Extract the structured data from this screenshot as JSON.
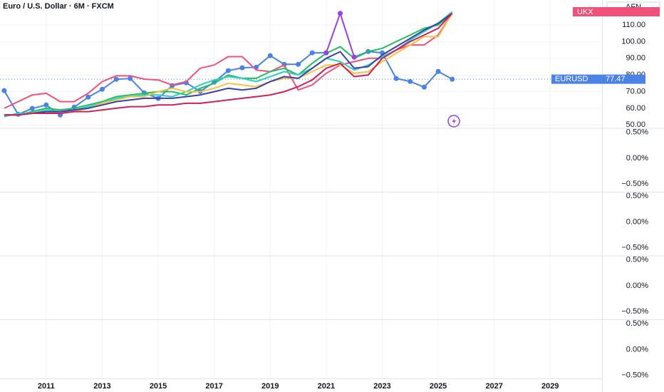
{
  "chart_data": {
    "type": "line",
    "title": "Euro / U.S. Dollar · 6M · FXCM",
    "currency": "AFN",
    "xlim": [
      2009.35,
      2030.85
    ],
    "xticks": [
      2011,
      2013,
      2015,
      2017,
      2019,
      2021,
      2023,
      2025,
      2027,
      2029
    ],
    "ylim": [
      48,
      125
    ],
    "yticks": [
      {
        "value": 110,
        "label": "110.00"
      },
      {
        "value": 100,
        "label": "100.00"
      },
      {
        "value": 90,
        "label": "90.00"
      },
      {
        "value": 80,
        "label": "80.00"
      },
      {
        "value": 70,
        "label": "70.00"
      },
      {
        "value": 60,
        "label": "60.00"
      },
      {
        "value": 50,
        "label": "50.00"
      }
    ],
    "grid": true,
    "x": [
      2009.5,
      2010,
      2010.5,
      2011,
      2011.5,
      2012,
      2012.5,
      2013,
      2013.5,
      2014,
      2014.5,
      2015,
      2015.5,
      2016,
      2016.5,
      2017,
      2017.5,
      2018,
      2018.5,
      2019,
      2019.5,
      2020,
      2020.5,
      2021,
      2021.5,
      2022,
      2022.5,
      2023,
      2023.5,
      2024,
      2024.5,
      2025,
      2025.5
    ],
    "series": [
      {
        "name": "EURUSD",
        "color": "#4a82e6",
        "markers": true,
        "last_tag": true,
        "values": [
          70.6,
          56.4,
          59.9,
          62,
          56,
          60.7,
          66.7,
          71.4,
          77.4,
          77.9,
          69.3,
          65.9,
          73.6,
          75.3,
          70.1,
          75.7,
          82.6,
          84.3,
          84.7,
          91.6,
          86.4,
          86.4,
          93.3,
          93.3,
          null,
          90.7,
          94.1,
          93.3,
          77.9,
          76.1,
          72.7,
          82.1,
          77.47
        ]
      },
      {
        "name": "UKX",
        "color": "#f0507a",
        "top_tag": true,
        "values": [
          60,
          64,
          68,
          69,
          64,
          64,
          69,
          76,
          79.5,
          79.5,
          77.5,
          77,
          74,
          76,
          84,
          86,
          91,
          91,
          83,
          82,
          86,
          71,
          74,
          81,
          86,
          88,
          90,
          90,
          95,
          98,
          98,
          104,
          117
        ]
      },
      {
        "color": "#1fbf5a",
        "values": [
          56,
          56,
          58,
          60,
          59,
          60,
          62,
          64,
          67,
          68,
          69,
          70,
          70,
          68,
          72,
          75,
          80,
          78,
          78,
          82,
          84,
          80,
          87,
          93,
          97,
          90,
          94,
          96,
          100,
          104,
          108,
          110,
          117
        ]
      },
      {
        "color": "#2ad0c0",
        "values": [
          55,
          57,
          57,
          59,
          58,
          59,
          61,
          63,
          66,
          67,
          68,
          68,
          67,
          70,
          74,
          77,
          79,
          78,
          76,
          79,
          82,
          80,
          84,
          90,
          88,
          83,
          86,
          91,
          95,
          101,
          106,
          111,
          118
        ]
      },
      {
        "color": "#f5c242",
        "values": [
          56,
          56,
          57,
          58,
          57,
          58,
          60,
          63,
          65,
          67,
          67,
          70,
          72,
          70,
          70,
          72,
          75,
          74,
          73,
          76,
          78,
          78,
          82,
          86,
          86,
          81,
          82,
          88,
          93,
          98,
          103,
          103,
          117
        ]
      },
      {
        "color": "#3b3fb0",
        "values": [
          56,
          56,
          57,
          58,
          58,
          59,
          60,
          62,
          64,
          65,
          66,
          66,
          66,
          67,
          68,
          70,
          72,
          71,
          72,
          76,
          79,
          78,
          84,
          90,
          94,
          84,
          85,
          92,
          97,
          102,
          107,
          111,
          117
        ]
      },
      {
        "color": "#d0205a",
        "values": [
          56,
          56,
          57,
          57,
          57,
          58,
          58,
          59,
          60,
          61,
          61,
          62,
          62,
          63,
          63,
          64,
          65,
          66,
          67,
          68,
          70,
          73,
          77,
          84,
          87,
          79,
          80,
          90,
          95,
          100,
          104,
          108,
          117
        ]
      },
      {
        "color": "#9c3fe0",
        "markers": true,
        "values": [
          null,
          null,
          null,
          null,
          null,
          null,
          null,
          null,
          null,
          null,
          null,
          null,
          null,
          null,
          null,
          null,
          null,
          null,
          null,
          null,
          null,
          null,
          null,
          93.3,
          117,
          90.7,
          null,
          null,
          null,
          null,
          null,
          null,
          null
        ]
      }
    ],
    "indicator_panes": [
      {
        "ylim": [
          -0.66,
          0.58
        ],
        "yticks": [
          {
            "value": 0.5,
            "label": "0.50%"
          },
          {
            "value": 0,
            "label": "0.00%"
          },
          {
            "value": -0.5,
            "label": "−0.50%"
          }
        ]
      },
      {
        "ylim": [
          -0.66,
          0.58
        ],
        "yticks": [
          {
            "value": 0.5,
            "label": "0.50%"
          },
          {
            "value": 0,
            "label": "0.00%"
          },
          {
            "value": -0.5,
            "label": "−0.50%"
          }
        ]
      },
      {
        "ylim": [
          -0.66,
          0.58
        ],
        "yticks": [
          {
            "value": 0.5,
            "label": "0.50%"
          },
          {
            "value": 0,
            "label": "0.00%"
          },
          {
            "value": -0.5,
            "label": "−0.50%"
          }
        ]
      },
      {
        "ylim": [
          -0.66,
          0.58
        ],
        "yticks": [
          {
            "value": 0.5,
            "label": "0.50%"
          },
          {
            "value": 0,
            "label": "0.00%"
          },
          {
            "value": -0.5,
            "label": "−0.50%"
          }
        ]
      }
    ]
  }
}
